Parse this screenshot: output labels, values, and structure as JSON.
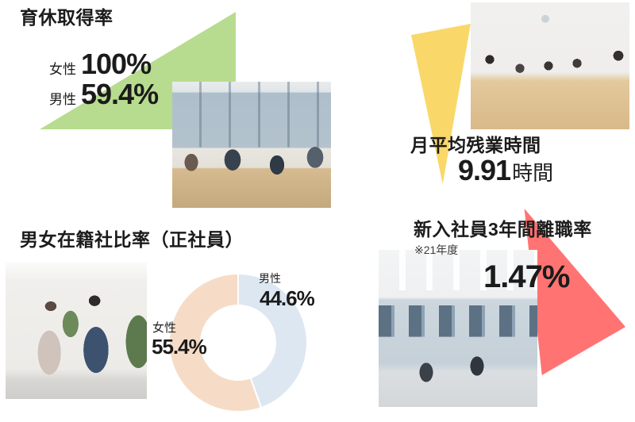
{
  "colors": {
    "accent_green": "#b7dc8f",
    "accent_yellow": "#f9d869",
    "accent_red": "#ff7473",
    "pie_male": "#dde7f2",
    "pie_female": "#f6dcc6",
    "text": "#1b1b1b",
    "note_text": "#3c3c3c"
  },
  "sections": {
    "parental_leave": {
      "title": "育休取得率",
      "rows": [
        {
          "label": "女性",
          "value": "100%"
        },
        {
          "label": "男性",
          "value": "59.4%"
        }
      ]
    },
    "overtime": {
      "title": "月平均残業時間",
      "value": "9.91",
      "unit": "時間"
    },
    "gender_ratio": {
      "title": "男女在籍社比率（正社員）",
      "male_label": "男性",
      "male_value": "44.6%",
      "female_label": "女性",
      "female_value": "55.4%"
    },
    "turnover": {
      "title": "新入社員3年間離職率",
      "note": "※21年度",
      "value": "1.47%"
    }
  },
  "chart_data": {
    "type": "pie",
    "donut": true,
    "title": "男女在籍社比率（正社員）",
    "labels": [
      "男性",
      "女性"
    ],
    "values": [
      44.6,
      55.4
    ],
    "unit": "%",
    "colors": [
      "#dde7f2",
      "#f6dcc6"
    ],
    "start_angle": "top",
    "direction": "clockwise",
    "legend_position": "none"
  }
}
